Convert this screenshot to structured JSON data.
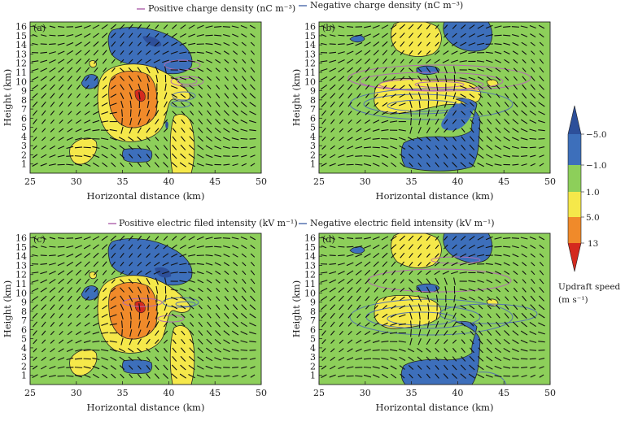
{
  "legend": {
    "top_positive": "Positive charge density",
    "top_negative": "Negative charge density",
    "bottom_positive": "Positive electric filed intensity",
    "bottom_negative": "Negative electric field intensity",
    "unit_charge": "(nC m⁻³)",
    "unit_field": "(kV m⁻¹)",
    "positive_color": "#b36bb0",
    "negative_color": "#5572b0"
  },
  "colorbar": {
    "title": "Updraft speed",
    "unit": "(m s⁻¹)",
    "levels": [
      "−5.0",
      "−1.0",
      "1.0",
      "5.0",
      "13"
    ],
    "colors": [
      "#2d4f9a",
      "#3d6fbb",
      "#8dcf5a",
      "#f5e84a",
      "#f08a2a",
      "#d42a1e"
    ]
  },
  "chart_data": [
    {
      "panel": "(a)",
      "type": "contour",
      "xlabel": "Horizontal distance (km)",
      "ylabel": "Height (km)",
      "xlim": [
        25,
        50
      ],
      "ylim": [
        0,
        16.5
      ],
      "x_ticks": [
        "25",
        "30",
        "35",
        "40",
        "45",
        "50"
      ],
      "y_ticks": [
        "1",
        "2",
        "3",
        "4",
        "5",
        "6",
        "7",
        "8",
        "9",
        "10",
        "11",
        "12",
        "13",
        "14",
        "15",
        "16"
      ],
      "overlay": "charge density (nC m⁻³)"
    },
    {
      "panel": "(b)",
      "type": "contour",
      "xlabel": "Horizontal distance (km)",
      "ylabel": "Height (km)",
      "xlim": [
        25,
        50
      ],
      "ylim": [
        0,
        16.5
      ],
      "x_ticks": [
        "25",
        "30",
        "35",
        "40",
        "45",
        "50"
      ],
      "y_ticks": [
        "1",
        "2",
        "3",
        "4",
        "5",
        "6",
        "7",
        "8",
        "9",
        "10",
        "11",
        "12",
        "13",
        "14",
        "15",
        "16"
      ],
      "overlay": "charge density (nC m⁻³)"
    },
    {
      "panel": "(c)",
      "type": "contour",
      "xlabel": "Horizontal distance (km)",
      "ylabel": "Height (km)",
      "xlim": [
        25,
        50
      ],
      "ylim": [
        0,
        16.5
      ],
      "x_ticks": [
        "25",
        "30",
        "35",
        "40",
        "45",
        "50"
      ],
      "y_ticks": [
        "1",
        "2",
        "3",
        "4",
        "5",
        "6",
        "7",
        "8",
        "9",
        "10",
        "11",
        "12",
        "13",
        "14",
        "15",
        "16"
      ],
      "overlay": "electric field intensity (kV m⁻¹)"
    },
    {
      "panel": "(d)",
      "type": "contour",
      "xlabel": "Horizontal distance (km)",
      "ylabel": "Height (km)",
      "xlim": [
        25,
        50
      ],
      "ylim": [
        0,
        16.5
      ],
      "x_ticks": [
        "25",
        "30",
        "35",
        "40",
        "45",
        "50"
      ],
      "y_ticks": [
        "1",
        "2",
        "3",
        "4",
        "5",
        "6",
        "7",
        "8",
        "9",
        "10",
        "11",
        "12",
        "13",
        "14",
        "15",
        "16"
      ],
      "overlay": "electric field intensity (kV m⁻¹)"
    }
  ]
}
